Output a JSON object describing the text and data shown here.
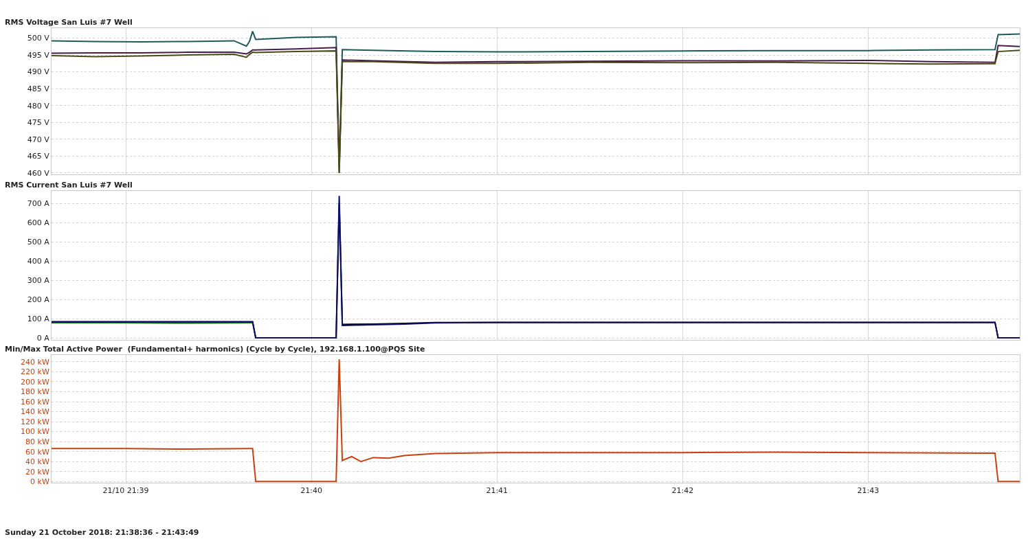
{
  "chart_data": [
    {
      "type": "line",
      "title": "RMS Voltage San Luis #7 Well",
      "tick_labels": "y",
      "grid": true,
      "marker": "none",
      "line_style": "solid",
      "x": [
        "2018-10-21T21:38:36",
        "2018-10-21T21:38:50",
        "2018-10-21T21:39:05",
        "2018-10-21T21:39:20",
        "2018-10-21T21:39:35",
        "2018-10-21T21:39:39",
        "2018-10-21T21:39:40",
        "2018-10-21T21:39:41",
        "2018-10-21T21:39:42",
        "2018-10-21T21:39:55",
        "2018-10-21T21:40:08",
        "2018-10-21T21:40:09",
        "2018-10-21T21:40:10",
        "2018-10-21T21:40:20",
        "2018-10-21T21:40:40",
        "2018-10-21T21:41:00",
        "2018-10-21T21:41:30",
        "2018-10-21T21:42:00",
        "2018-10-21T21:42:30",
        "2018-10-21T21:43:00",
        "2018-10-21T21:43:20",
        "2018-10-21T21:43:41",
        "2018-10-21T21:43:42",
        "2018-10-21T21:43:49"
      ],
      "series": [
        {
          "color": "#1e5a5a",
          "values": [
            499.2,
            499.0,
            498.9,
            499.0,
            499.2,
            497.6,
            499.0,
            502.0,
            499.6,
            500.2,
            500.4,
            460,
            496.6,
            496.4,
            496.0,
            495.9,
            496.0,
            496.2,
            496.3,
            496.3,
            496.5,
            496.6,
            501.0,
            501.2
          ]
        },
        {
          "color": "#4a1a4a",
          "values": [
            495.5,
            495.6,
            495.6,
            495.8,
            495.8,
            495.3,
            495.8,
            496.5,
            496.5,
            496.8,
            497.2,
            462,
            493.5,
            493.3,
            492.8,
            493.0,
            493.1,
            493.3,
            493.2,
            493.4,
            493.0,
            492.8,
            497.8,
            497.5
          ]
        },
        {
          "color": "#4a4a14",
          "values": [
            494.8,
            494.5,
            494.7,
            495.0,
            495.2,
            494.3,
            495.2,
            495.8,
            495.7,
            496.0,
            496.2,
            460,
            493.0,
            493.0,
            492.5,
            492.5,
            492.8,
            492.7,
            492.8,
            492.5,
            492.3,
            492.4,
            496.0,
            496.4
          ]
        }
      ],
      "xlim": [
        "2018-10-21T21:38:36",
        "2018-10-21T21:43:49"
      ],
      "xticks": [
        {
          "value": "2018-10-21T21:39",
          "label": null
        },
        {
          "value": "2018-10-21T21:40",
          "label": null
        },
        {
          "value": "2018-10-21T21:41",
          "label": null
        },
        {
          "value": "2018-10-21T21:42",
          "label": null
        },
        {
          "value": "2018-10-21T21:43",
          "label": null
        }
      ],
      "ylim": [
        459.5,
        503
      ],
      "yticks": [
        {
          "value": 460,
          "label": "460 V"
        },
        {
          "value": 465,
          "label": "465 V"
        },
        {
          "value": 470,
          "label": "470 V"
        },
        {
          "value": 475,
          "label": "475 V"
        },
        {
          "value": 480,
          "label": "480 V"
        },
        {
          "value": 485,
          "label": "485 V"
        },
        {
          "value": 490,
          "label": "490 V"
        },
        {
          "value": 495,
          "label": "495 V"
        },
        {
          "value": 500,
          "label": "500 V"
        }
      ]
    },
    {
      "type": "line",
      "title": "RMS Current San Luis #7 Well",
      "tick_labels": "y",
      "grid": true,
      "marker": "none",
      "line_style": "solid",
      "x": [
        "2018-10-21T21:38:36",
        "2018-10-21T21:39:00",
        "2018-10-21T21:39:20",
        "2018-10-21T21:39:40",
        "2018-10-21T21:39:41",
        "2018-10-21T21:39:42",
        "2018-10-21T21:40:08",
        "2018-10-21T21:40:09",
        "2018-10-21T21:40:10",
        "2018-10-21T21:40:20",
        "2018-10-21T21:40:30",
        "2018-10-21T21:40:40",
        "2018-10-21T21:41:00",
        "2018-10-21T21:41:30",
        "2018-10-21T21:42:00",
        "2018-10-21T21:42:30",
        "2018-10-21T21:43:00",
        "2018-10-21T21:43:40",
        "2018-10-21T21:43:41",
        "2018-10-21T21:43:42",
        "2018-10-21T21:43:49"
      ],
      "series": [
        {
          "color": "#2e7d32",
          "values": [
            78,
            78,
            76,
            78,
            78,
            null,
            null,
            null,
            null,
            null,
            null,
            null,
            null,
            null,
            null,
            null,
            null,
            null,
            null,
            null,
            null
          ]
        },
        {
          "color": "#000000",
          "values": [
            84,
            84,
            84,
            84,
            84,
            0,
            0,
            700,
            70,
            72,
            75,
            80,
            81,
            81,
            81,
            81,
            81,
            81,
            81,
            0,
            0
          ]
        },
        {
          "color": "#0a0f6b",
          "values": [
            82,
            82,
            82,
            82,
            82,
            0,
            0,
            740,
            65,
            68,
            72,
            78,
            80,
            80,
            80,
            80,
            80,
            80,
            80,
            0,
            0
          ]
        }
      ],
      "xlim": [
        "2018-10-21T21:38:36",
        "2018-10-21T21:43:49"
      ],
      "xticks": [
        {
          "value": "2018-10-21T21:39",
          "label": null
        },
        {
          "value": "2018-10-21T21:40",
          "label": null
        },
        {
          "value": "2018-10-21T21:41",
          "label": null
        },
        {
          "value": "2018-10-21T21:42",
          "label": null
        },
        {
          "value": "2018-10-21T21:43",
          "label": null
        }
      ],
      "ylim": [
        -10,
        765
      ],
      "yticks": [
        {
          "value": 0,
          "label": "0 A"
        },
        {
          "value": 100,
          "label": "100 A"
        },
        {
          "value": 200,
          "label": "200 A"
        },
        {
          "value": 300,
          "label": "300 A"
        },
        {
          "value": 400,
          "label": "400 A"
        },
        {
          "value": 500,
          "label": "500 A"
        },
        {
          "value": 600,
          "label": "600 A"
        },
        {
          "value": 700,
          "label": "700 A"
        }
      ]
    },
    {
      "type": "line",
      "title": "Min/Max Total Active Power  (Fundamental+ harmonics) (Cycle by Cycle), 192.168.1.100@PQS Site",
      "grid": true,
      "marker": "none",
      "line_style": "solid",
      "annotations": [
        "Sunday 21 October 2018: 21:38:36 - 21:43:49"
      ],
      "x": [
        "2018-10-21T21:38:36",
        "2018-10-21T21:39:00",
        "2018-10-21T21:39:20",
        "2018-10-21T21:39:40",
        "2018-10-21T21:39:41",
        "2018-10-21T21:39:42",
        "2018-10-21T21:40:08",
        "2018-10-21T21:40:09",
        "2018-10-21T21:40:10",
        "2018-10-21T21:40:13",
        "2018-10-21T21:40:16",
        "2018-10-21T21:40:20",
        "2018-10-21T21:40:25",
        "2018-10-21T21:40:30",
        "2018-10-21T21:40:40",
        "2018-10-21T21:41:00",
        "2018-10-21T21:41:30",
        "2018-10-21T21:42:00",
        "2018-10-21T21:42:30",
        "2018-10-21T21:43:00",
        "2018-10-21T21:43:40",
        "2018-10-21T21:43:41",
        "2018-10-21T21:43:42",
        "2018-10-21T21:43:49"
      ],
      "series": [
        {
          "color": "#c8400c",
          "values": [
            66,
            66,
            65,
            66,
            66,
            0,
            0,
            245,
            42,
            50,
            40,
            48,
            47,
            52,
            56,
            58,
            58,
            58,
            59,
            58,
            57,
            57,
            0,
            0
          ]
        }
      ],
      "xlim": [
        "2018-10-21T21:38:36",
        "2018-10-21T21:43:49"
      ],
      "xticks": [
        {
          "value": "2018-10-21T21:39",
          "label": "21/10 21:39"
        },
        {
          "value": "2018-10-21T21:40",
          "label": "21:40"
        },
        {
          "value": "2018-10-21T21:41",
          "label": "21:41"
        },
        {
          "value": "2018-10-21T21:42",
          "label": "21:42"
        },
        {
          "value": "2018-10-21T21:43",
          "label": "21:43"
        }
      ],
      "ylim": [
        -3,
        254
      ],
      "yticks": [
        {
          "value": 0,
          "label": "0 kW"
        },
        {
          "value": 20,
          "label": "20 kW"
        },
        {
          "value": 40,
          "label": "40 kW"
        },
        {
          "value": 60,
          "label": "60 kW"
        },
        {
          "value": 80,
          "label": "80 kW"
        },
        {
          "value": 100,
          "label": "100 kW"
        },
        {
          "value": 120,
          "label": "120 kW"
        },
        {
          "value": 140,
          "label": "140 kW"
        },
        {
          "value": 160,
          "label": "160 kW"
        },
        {
          "value": 180,
          "label": "180 kW"
        },
        {
          "value": 200,
          "label": "200 kW"
        },
        {
          "value": 220,
          "label": "220 kW"
        },
        {
          "value": 240,
          "label": "240 kW"
        }
      ]
    }
  ]
}
